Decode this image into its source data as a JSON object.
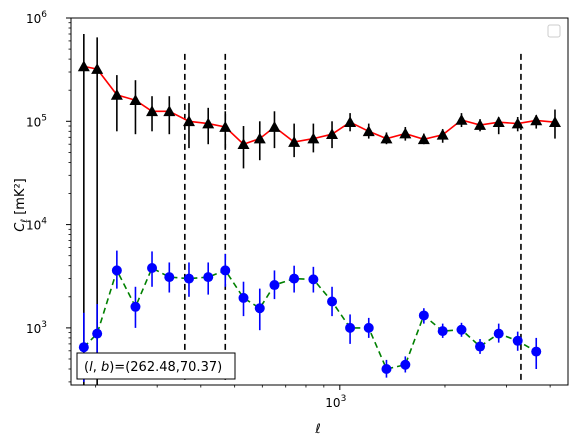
{
  "chart_data": {
    "type": "line",
    "x_scale": "log",
    "y_scale": "log",
    "xlim": [
      170,
      4500
    ],
    "ylim": [
      280,
      1000000
    ],
    "xlabel": "ℓ",
    "ylabel_main": "C",
    "ylabel_sub": "ℓ",
    "ylabel_unit": "[mK²]",
    "x_ticks": [
      {
        "value": 1000,
        "base": "10",
        "exp": "3"
      }
    ],
    "y_ticks": [
      {
        "value": 1000,
        "base": "10",
        "exp": "3"
      },
      {
        "value": 10000,
        "base": "10",
        "exp": "4"
      },
      {
        "value": 100000,
        "base": "10",
        "exp": "5"
      },
      {
        "value": 1000000,
        "base": "10",
        "exp": "6"
      }
    ],
    "annotation": "(l, b)=(262.48,70.37)",
    "annotation_parts": {
      "open": "(",
      "l": "l",
      "comma": ", ",
      "b": "b",
      "rest": ")=(262.48,70.37)"
    },
    "legend": "top-right",
    "grid": false,
    "vlines": {
      "x": [
        360,
        470,
        3300
      ],
      "y_range": [
        300,
        450000
      ],
      "style": "dashed",
      "color": "#000000"
    },
    "series": [
      {
        "marker": "triangle",
        "line_color": "#ff0000",
        "marker_color": "#000000",
        "linestyle": "solid",
        "x": [
          185,
          202,
          230,
          260,
          290,
          325,
          370,
          420,
          470,
          530,
          590,
          650,
          740,
          840,
          950,
          1070,
          1210,
          1360,
          1540,
          1740,
          1970,
          2230,
          2520,
          2850,
          3230,
          3650,
          4130
        ],
        "y": [
          340000,
          320000,
          180000,
          160000,
          125000,
          125000,
          100000,
          95000,
          88000,
          60000,
          68000,
          88000,
          63000,
          68000,
          75000,
          98000,
          80000,
          68000,
          76000,
          67000,
          74000,
          103000,
          92000,
          98000,
          95000,
          102000,
          98000
        ],
        "err_low": [
          200,
          200,
          80000,
          75000,
          80000,
          75000,
          55000,
          60000,
          55000,
          35000,
          42000,
          55000,
          45000,
          50000,
          55000,
          80000,
          68000,
          60000,
          65000,
          60000,
          62000,
          88000,
          80000,
          75000,
          80000,
          85000,
          68000
        ],
        "err_high": [
          700000,
          650000,
          280000,
          250000,
          175000,
          175000,
          150000,
          135000,
          125000,
          90000,
          100000,
          125000,
          95000,
          95000,
          100000,
          120000,
          95000,
          78000,
          88000,
          76000,
          84000,
          120000,
          105000,
          110000,
          110000,
          115000,
          130000
        ]
      },
      {
        "marker": "circle",
        "line_color": "#008000",
        "marker_color": "#0000ff",
        "linestyle": "dashed",
        "x": [
          185,
          202,
          230,
          260,
          290,
          325,
          370,
          420,
          470,
          530,
          590,
          650,
          740,
          840,
          950,
          1070,
          1210,
          1360,
          1540,
          1740,
          1970,
          2230,
          2520,
          2850,
          3230,
          3650,
          4130
        ],
        "y": [
          650,
          880,
          3600,
          1600,
          3800,
          3100,
          3000,
          3100,
          3600,
          1950,
          1550,
          2600,
          3000,
          2950,
          1800,
          1000,
          1000,
          400,
          440,
          1320,
          930,
          960,
          660,
          880,
          750,
          590,
          0
        ],
        "err_low": [
          300,
          450,
          2400,
          1000,
          2500,
          2200,
          2000,
          2100,
          2500,
          1300,
          950,
          1900,
          2200,
          2200,
          1300,
          700,
          800,
          330,
          370,
          1100,
          800,
          820,
          560,
          720,
          600,
          400,
          0
        ],
        "err_high": [
          1400,
          1700,
          5600,
          2500,
          5500,
          4300,
          4300,
          4300,
          5200,
          2800,
          2400,
          3600,
          4000,
          3900,
          2500,
          1350,
          1250,
          490,
          530,
          1550,
          1100,
          1120,
          780,
          1100,
          920,
          800,
          0
        ]
      }
    ]
  }
}
